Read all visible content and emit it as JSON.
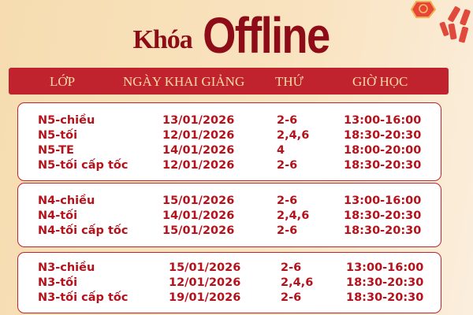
{
  "title": {
    "prefix": "Khóa",
    "main": "Offline"
  },
  "header": {
    "col_class": "LỚP",
    "col_date": "NGÀY KHAI GIẢNG",
    "col_day": "THỨ",
    "col_time": "GIỜ HỌC"
  },
  "colors": {
    "primary": "#c1232e",
    "title": "#8d0c17",
    "header_text": "#f6d9a6"
  },
  "groups": [
    {
      "rows": [
        {
          "name": "N5-chiều",
          "date": "13/01/2026",
          "day": "2-6",
          "time": "13:00-16:00"
        },
        {
          "name": "N5-tối",
          "date": "12/01/2026",
          "day": "2,4,6",
          "time": "18:30-20:30"
        },
        {
          "name": "N5-TE",
          "date": "14/01/2026",
          "day": "4",
          "time": "18:00-20:00"
        },
        {
          "name": "N5-tối cấp tốc",
          "date": "12/01/2026",
          "day": "2-6",
          "time": "18:30-20:30"
        }
      ]
    },
    {
      "rows": [
        {
          "name": "N4-chiều",
          "date": "15/01/2026",
          "day": "2-6",
          "time": "13:00-16:00"
        },
        {
          "name": "N4-tối",
          "date": "14/01/2026",
          "day": "2,4,6",
          "time": "18:30-20:30"
        },
        {
          "name": "N4-tối cấp tốc",
          "date": "15/01/2026",
          "day": "2-6",
          "time": "18:30-20:30"
        }
      ]
    },
    {
      "rows": [
        {
          "name": "N3-chiều",
          "date": "15/01/2026",
          "day": "2-6",
          "time": "13:00-16:00"
        },
        {
          "name": "N3-tối",
          "date": "12/01/2026",
          "day": "2,4,6",
          "time": "18:30-20:30"
        },
        {
          "name": "N3-tối cấp tốc",
          "date": "19/01/2026",
          "day": "2-6",
          "time": "18:30-20:30"
        }
      ]
    }
  ]
}
